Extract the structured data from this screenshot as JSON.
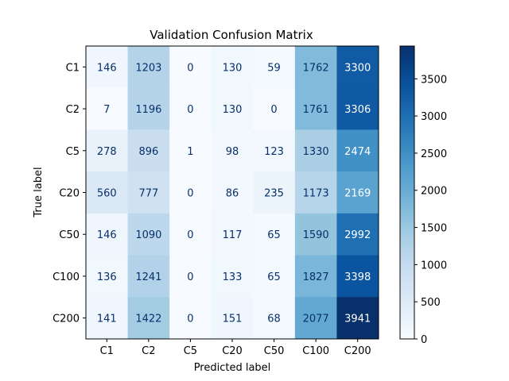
{
  "chart_data": {
    "type": "heatmap",
    "title": "Validation Confusion Matrix",
    "xlabel": "Predicted label",
    "ylabel": "True label",
    "x_categories": [
      "C1",
      "C2",
      "C5",
      "C20",
      "C50",
      "C100",
      "C200"
    ],
    "y_categories": [
      "C1",
      "C2",
      "C5",
      "C20",
      "C50",
      "C100",
      "C200"
    ],
    "values": [
      [
        146,
        1203,
        0,
        130,
        59,
        1762,
        3300
      ],
      [
        7,
        1196,
        0,
        130,
        0,
        1761,
        3306
      ],
      [
        278,
        896,
        1,
        98,
        123,
        1330,
        2474
      ],
      [
        560,
        777,
        0,
        86,
        235,
        1173,
        2169
      ],
      [
        146,
        1090,
        0,
        117,
        65,
        1590,
        2992
      ],
      [
        136,
        1241,
        0,
        133,
        65,
        1827,
        3398
      ],
      [
        141,
        1422,
        0,
        151,
        68,
        2077,
        3941
      ]
    ],
    "colormap": "Blues",
    "colorbar": {
      "range": [
        0,
        3941
      ],
      "ticks": [
        0,
        500,
        1000,
        1500,
        2000,
        2500,
        3000,
        3500
      ]
    },
    "grid": false
  }
}
